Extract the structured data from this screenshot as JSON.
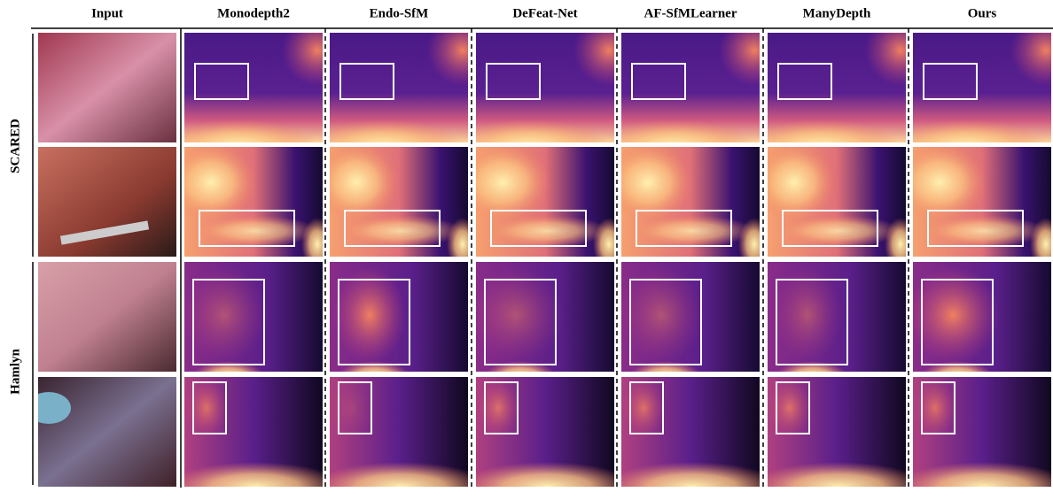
{
  "header": {
    "columns": [
      "Input",
      "Monodepth2",
      "Endo-SfM",
      "DeFeat-Net",
      "AF-SfMLearner",
      "ManyDepth",
      "Ours"
    ]
  },
  "row_groups": [
    "SCARED",
    "Hamlyn"
  ]
}
